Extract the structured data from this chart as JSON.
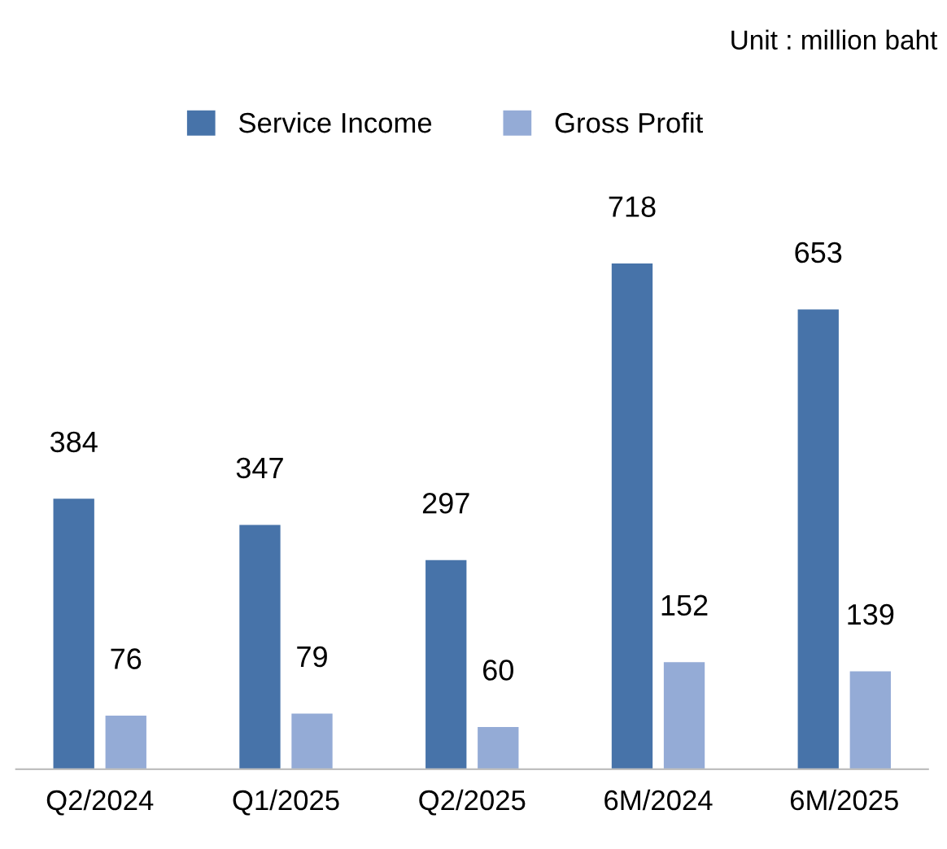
{
  "chart_data": {
    "type": "bar",
    "categories": [
      "Q2/2024",
      "Q1/2025",
      "Q2/2025",
      "6M/2024",
      "6M/2025"
    ],
    "series": [
      {
        "name": "Service Income",
        "color": "#4773a9",
        "values": [
          384,
          347,
          297,
          718,
          653
        ]
      },
      {
        "name": "Gross Profit",
        "color": "#94abd6",
        "values": [
          76,
          79,
          60,
          152,
          139
        ]
      }
    ],
    "data_labels": true,
    "legend": "top",
    "grid": false,
    "annotations": [
      "Unit : million baht"
    ]
  }
}
